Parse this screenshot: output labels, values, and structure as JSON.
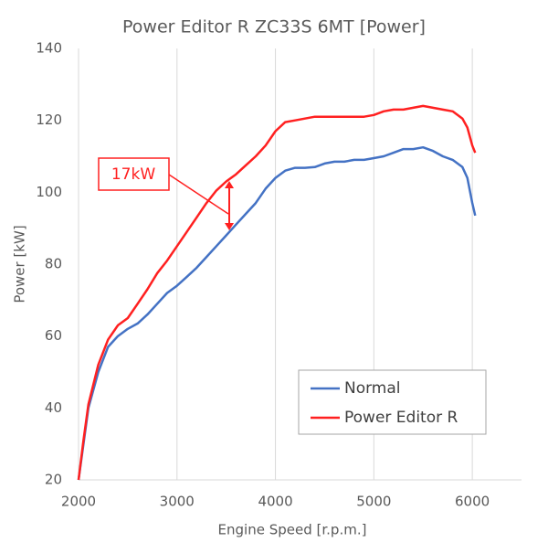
{
  "chart_data": {
    "type": "line",
    "title": "Power Editor R ZC33S 6MT [Power]",
    "x_label": "Engine Speed [r.p.m.]",
    "y_label": "Power [kW]",
    "xlim": [
      2000,
      6500
    ],
    "xticks": [
      2000,
      3000,
      4000,
      5000,
      6000
    ],
    "ylim": [
      20,
      140
    ],
    "yticks": [
      20,
      40,
      60,
      80,
      100,
      120,
      140
    ],
    "x_grid": true,
    "y_grid": false,
    "legend_position": "lower right",
    "annotation": "17kW",
    "x": [
      2000,
      2050,
      2100,
      2200,
      2300,
      2400,
      2500,
      2600,
      2700,
      2800,
      2900,
      3000,
      3100,
      3200,
      3300,
      3400,
      3500,
      3600,
      3700,
      3800,
      3900,
      4000,
      4100,
      4200,
      4300,
      4400,
      4500,
      4600,
      4700,
      4800,
      4900,
      5000,
      5100,
      5200,
      5300,
      5400,
      5500,
      5600,
      5700,
      5800,
      5900,
      5950,
      6000,
      6030
    ],
    "series": [
      {
        "name": "Normal",
        "color": "#4472c4",
        "values": [
          20,
          30,
          40,
          50,
          57,
          60,
          62,
          63.5,
          66,
          69,
          72,
          74,
          76.5,
          79,
          82,
          85,
          88,
          91,
          94,
          97,
          101,
          104,
          106,
          106.8,
          106.8,
          107,
          108,
          108.5,
          108.5,
          109,
          109,
          109.5,
          110,
          111,
          112,
          112,
          112.5,
          111.5,
          110,
          109,
          107,
          104,
          97,
          93.5
        ]
      },
      {
        "name": "Power Editor R",
        "color": "#ff2020",
        "values": [
          20,
          31,
          41,
          52,
          59,
          63,
          65,
          69,
          73,
          77.5,
          81,
          85,
          89,
          93,
          97,
          100.5,
          103,
          105,
          107.5,
          110,
          113,
          117,
          119.5,
          120,
          120.5,
          121,
          121,
          121,
          121,
          121,
          121,
          121.5,
          122.5,
          123,
          123,
          123.5,
          124,
          123.5,
          123,
          122.5,
          120.5,
          118,
          113,
          111
        ]
      }
    ]
  }
}
